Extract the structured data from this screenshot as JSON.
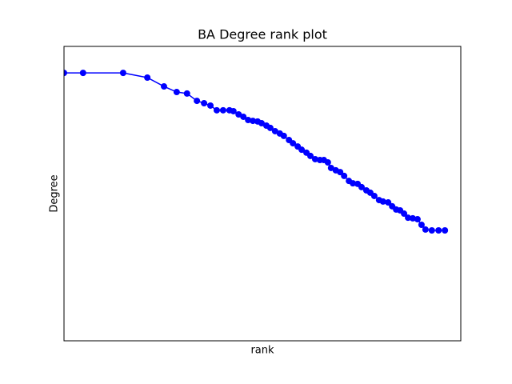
{
  "chart_data": {
    "type": "line",
    "title": "BA Degree rank plot",
    "x_label": "rank",
    "y_label": "Degree",
    "xlim": [
      0,
      100
    ],
    "ylim": [
      0,
      100
    ],
    "series": [
      {
        "color": "#0000ff",
        "x": [
          0,
          4.8,
          14.9,
          21.0,
          25.2,
          28.4,
          31.0,
          33.5,
          35.3,
          36.9,
          38.5,
          40.1,
          41.7,
          42.7,
          44.0,
          45.2,
          46.4,
          47.6,
          48.8,
          49.8,
          51.0,
          52.0,
          53.2,
          54.4,
          55.4,
          56.7,
          57.7,
          58.9,
          59.9,
          61.1,
          62.1,
          63.3,
          64.5,
          65.5,
          66.5,
          67.3,
          68.5,
          69.6,
          70.6,
          71.8,
          72.8,
          74.0,
          75.0,
          76.2,
          77.2,
          78.2,
          79.4,
          80.4,
          81.7,
          82.7,
          83.7,
          84.7,
          85.7,
          86.7,
          87.9,
          89.1,
          90.1,
          91.1,
          92.7,
          94.4,
          96.0
        ],
        "values": [
          91.0,
          91.0,
          91.0,
          89.4,
          86.4,
          84.5,
          84.0,
          81.5,
          80.7,
          79.9,
          78.3,
          78.3,
          78.3,
          78.0,
          76.9,
          76.1,
          75.0,
          74.7,
          74.5,
          73.9,
          73.1,
          72.3,
          71.2,
          70.4,
          69.6,
          68.2,
          67.1,
          66.0,
          64.9,
          63.9,
          62.8,
          61.7,
          61.4,
          61.4,
          60.6,
          58.7,
          57.9,
          57.3,
          56.0,
          54.3,
          53.5,
          53.3,
          52.2,
          51.1,
          50.3,
          49.2,
          47.8,
          47.3,
          47.0,
          45.7,
          44.6,
          44.3,
          43.2,
          41.8,
          41.6,
          41.3,
          39.4,
          37.8,
          37.5,
          37.5,
          37.5
        ]
      }
    ]
  }
}
